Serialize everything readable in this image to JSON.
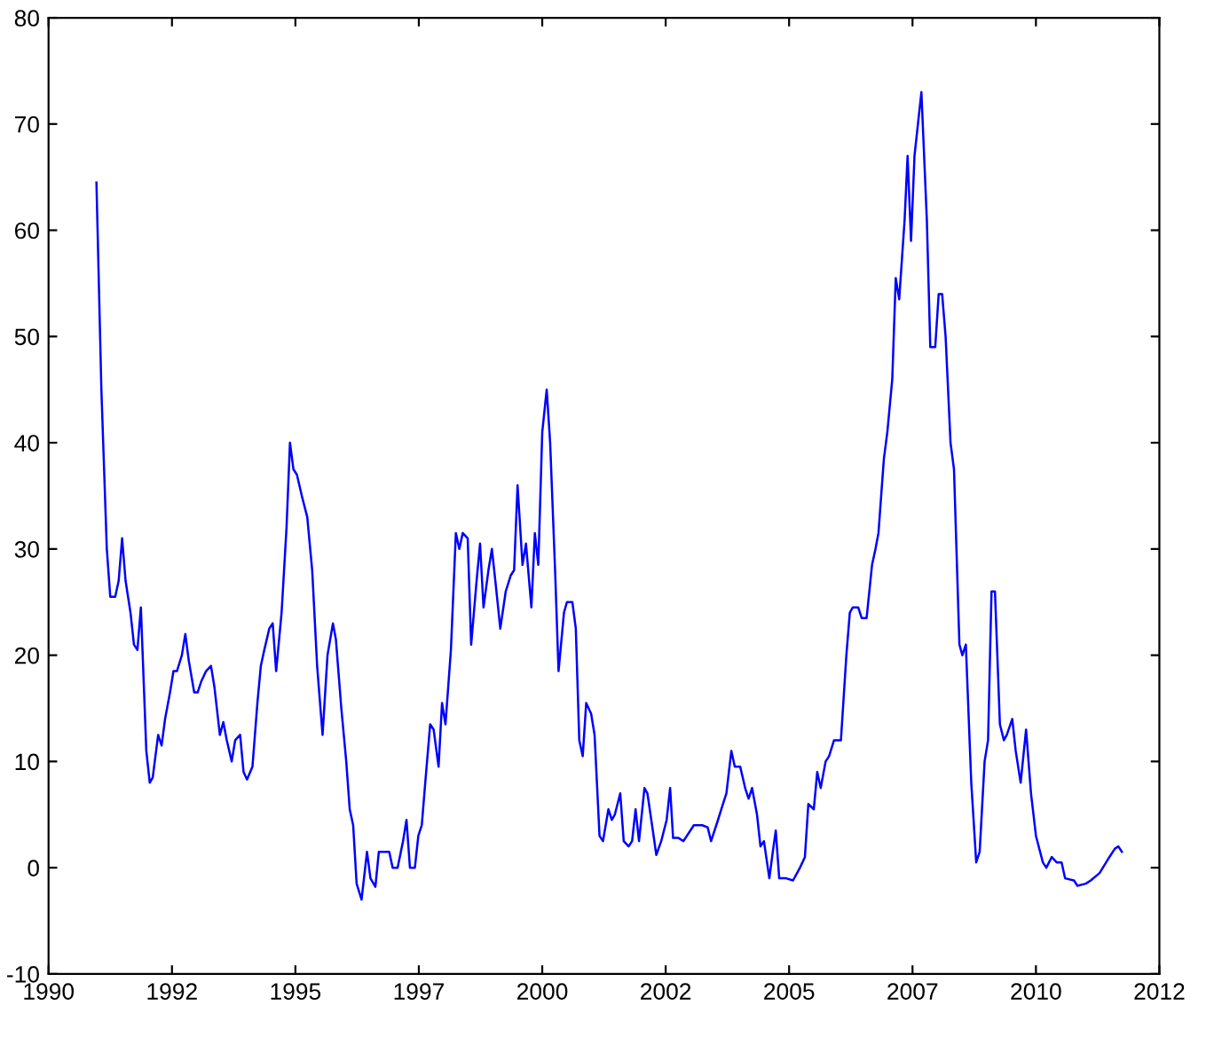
{
  "chart_data": {
    "type": "line",
    "x": [
      1990.97,
      1991.07,
      1991.18,
      1991.25,
      1991.35,
      1991.42,
      1991.49,
      1991.56,
      1991.66,
      1991.73,
      1991.8,
      1991.87,
      1991.98,
      1992.05,
      1992.11,
      1992.22,
      1992.29,
      1992.36,
      1992.46,
      1992.53,
      1992.6,
      1992.7,
      1992.77,
      1992.84,
      1992.95,
      1993.02,
      1993.09,
      1993.19,
      1993.29,
      1993.36,
      1993.47,
      1993.54,
      1993.61,
      1993.71,
      1993.78,
      1993.88,
      1993.95,
      1994.02,
      1994.13,
      1994.23,
      1994.3,
      1994.37,
      1994.47,
      1994.54,
      1994.61,
      1994.72,
      1994.82,
      1994.89,
      1994.96,
      1995.03,
      1995.13,
      1995.24,
      1995.34,
      1995.44,
      1995.55,
      1995.65,
      1995.76,
      1995.82,
      1995.93,
      1996.03,
      1996.1,
      1996.17,
      1996.24,
      1996.34,
      1996.45,
      1996.52,
      1996.62,
      1996.69,
      1996.8,
      1996.9,
      1996.97,
      1997.07,
      1997.18,
      1997.25,
      1997.32,
      1997.42,
      1997.49,
      1997.56,
      1997.63,
      1997.73,
      1997.8,
      1997.9,
      1997.97,
      1998.04,
      1998.15,
      1998.25,
      1998.32,
      1998.39,
      1998.49,
      1998.56,
      1998.67,
      1998.74,
      1998.81,
      1998.91,
      1998.98,
      1999.05,
      1999.15,
      1999.26,
      1999.36,
      1999.43,
      1999.5,
      1999.6,
      1999.67,
      1999.78,
      1999.85,
      1999.92,
      2000.0,
      2000.09,
      2000.16,
      2000.26,
      2000.33,
      2000.44,
      2000.5,
      2000.61,
      2000.68,
      2000.75,
      2000.82,
      2000.89,
      2000.99,
      2001.06,
      2001.16,
      2001.23,
      2001.34,
      2001.41,
      2001.47,
      2001.58,
      2001.65,
      2001.75,
      2001.82,
      2001.89,
      2001.96,
      2002.07,
      2002.13,
      2002.24,
      2002.31,
      2002.41,
      2002.52,
      2002.59,
      2002.65,
      2002.76,
      2002.86,
      2003.0,
      2003.07,
      2003.24,
      2003.35,
      2003.42,
      2003.56,
      2003.66,
      2003.73,
      2003.83,
      2003.9,
      2004.01,
      2004.11,
      2004.18,
      2004.25,
      2004.35,
      2004.42,
      2004.49,
      2004.6,
      2004.67,
      2004.73,
      2004.8,
      2004.94,
      2005.08,
      2005.22,
      2005.32,
      2005.39,
      2005.5,
      2005.57,
      2005.64,
      2005.74,
      2005.81,
      2005.91,
      2006.05,
      2006.16,
      2006.23,
      2006.29,
      2006.4,
      2006.47,
      2006.57,
      2006.68,
      2006.75,
      2006.81,
      2006.92,
      2006.99,
      2007.09,
      2007.16,
      2007.23,
      2007.34,
      2007.4,
      2007.47,
      2007.54,
      2007.68,
      2007.79,
      2007.86,
      2007.96,
      2008.03,
      2008.1,
      2008.17,
      2008.27,
      2008.34,
      2008.45,
      2008.51,
      2008.58,
      2008.69,
      2008.79,
      2008.86,
      2008.96,
      2009.03,
      2009.1,
      2009.17,
      2009.27,
      2009.35,
      2009.41,
      2009.52,
      2009.59,
      2009.69,
      2009.8,
      2009.9,
      2010.0,
      2010.14,
      2010.21,
      2010.32,
      2010.42,
      2010.52,
      2010.59,
      2010.77,
      2010.84,
      2011.01,
      2011.11,
      2011.29,
      2011.46,
      2011.6,
      2011.67,
      2011.74
    ],
    "series": [
      {
        "color": "#0000ff",
        "values": [
          64.5,
          45,
          30,
          25.5,
          25.5,
          27,
          31,
          27,
          24,
          21,
          20.5,
          24.5,
          11,
          8,
          8.5,
          12.5,
          11.5,
          14,
          16.5,
          18.5,
          18.5,
          20,
          22,
          19.5,
          16.5,
          16.5,
          17.5,
          18.5,
          19,
          17,
          12.5,
          13.7,
          12,
          10,
          12,
          12.5,
          9,
          8.3,
          9.5,
          15.5,
          19,
          20.5,
          22.5,
          23,
          18.5,
          24,
          32,
          40,
          37.5,
          37,
          35,
          33,
          28,
          19,
          12.5,
          20,
          23,
          21.5,
          15,
          10,
          5.5,
          4,
          -1.5,
          -3,
          1.5,
          -1,
          -1.8,
          1.5,
          1.5,
          1.5,
          0,
          0,
          2.5,
          4.5,
          0,
          0,
          3,
          4,
          8,
          13.5,
          13,
          9.5,
          15.5,
          13.5,
          20.5,
          31.5,
          30,
          31.5,
          31,
          21,
          27,
          30.5,
          24.5,
          28,
          30,
          27,
          22.5,
          26,
          27.5,
          28,
          36,
          28.5,
          30.5,
          24.5,
          31.5,
          28.5,
          41,
          45,
          40,
          28,
          18.5,
          24,
          25,
          25,
          22.5,
          12,
          10.5,
          15.5,
          14.5,
          12.5,
          3,
          2.5,
          5.5,
          4.5,
          5,
          7,
          2.5,
          2,
          2.5,
          5.5,
          2.5,
          7.5,
          7,
          3.5,
          1.2,
          2.5,
          4.5,
          7.5,
          2.8,
          2.8,
          2.5,
          3.5,
          4,
          4,
          3.8,
          2.5,
          4.5,
          6,
          7,
          11,
          9.5,
          9.5,
          7.5,
          6.5,
          7.5,
          5,
          2,
          2.5,
          -1,
          1.5,
          3.5,
          -1,
          -1,
          -1.2,
          0,
          1,
          6,
          5.5,
          9,
          7.5,
          10,
          10.5,
          12,
          12,
          20,
          24,
          24.5,
          24.5,
          23.5,
          23.5,
          28.5,
          30,
          31.5,
          38.5,
          41,
          46,
          55.5,
          53.5,
          61,
          67,
          59,
          67,
          73,
          61,
          49,
          49,
          54,
          54,
          50,
          40,
          37.5,
          21,
          20,
          21,
          8,
          0.5,
          1.5,
          10,
          12,
          26,
          26,
          13.5,
          12,
          12.5,
          14,
          11,
          8,
          13,
          7,
          3,
          0.5,
          0,
          1,
          0.5,
          0.5,
          -1,
          -1.2,
          -1.7,
          -1.5,
          -1.2,
          -0.5,
          0.8,
          1.8,
          2,
          1.5
        ]
      }
    ],
    "xlim": [
      1990,
      2012.5
    ],
    "xticks": [
      1990,
      {
        "value": 1992.5,
        "label": "1992"
      },
      1995,
      {
        "value": 1997.5,
        "label": "1997"
      },
      2000,
      {
        "value": 2002.5,
        "label": "2002"
      },
      2005,
      {
        "value": 2007.5,
        "label": "2007"
      },
      2010,
      {
        "value": 2012.5,
        "label": "2012"
      }
    ],
    "ylim": [
      -10,
      80
    ],
    "yticks": [
      -10,
      0,
      10,
      20,
      30,
      40,
      50,
      60,
      70,
      80
    ],
    "grid": false,
    "marker": "none",
    "line_style": "solid"
  }
}
